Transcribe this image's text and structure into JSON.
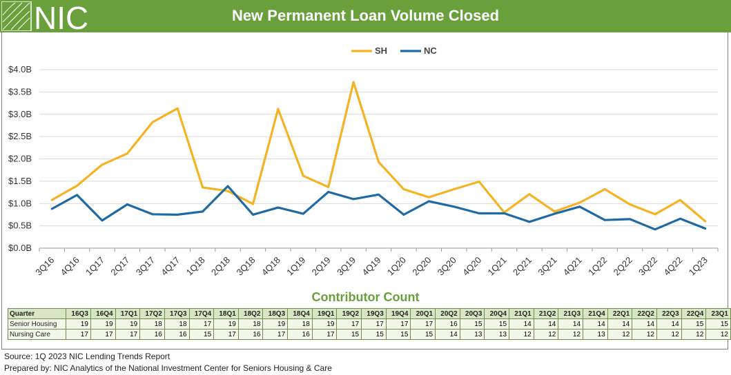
{
  "header": {
    "title": "New Permanent Loan Volume Closed",
    "logo_text": "NIC",
    "bg_color": "#6aa03c"
  },
  "chart_data": {
    "type": "line",
    "x": [
      "3Q16",
      "4Q16",
      "1Q17",
      "2Q17",
      "3Q17",
      "4Q17",
      "1Q18",
      "2Q18",
      "3Q18",
      "4Q18",
      "1Q19",
      "2Q19",
      "3Q19",
      "4Q19",
      "1Q20",
      "2Q20",
      "3Q20",
      "4Q20",
      "1Q21",
      "2Q21",
      "3Q21",
      "4Q21",
      "1Q22",
      "2Q22",
      "3Q22",
      "4Q22",
      "1Q23"
    ],
    "series": [
      {
        "name": "SH",
        "color": "#f5b324",
        "values": [
          1.08,
          1.4,
          1.87,
          2.12,
          2.82,
          3.13,
          1.36,
          1.28,
          0.99,
          3.12,
          1.62,
          1.37,
          3.72,
          1.93,
          1.32,
          1.14,
          1.32,
          1.49,
          0.8,
          1.21,
          0.82,
          1.02,
          1.32,
          0.98,
          0.76,
          1.08,
          0.6
        ]
      },
      {
        "name": "NC",
        "color": "#1f6aa5",
        "values": [
          0.88,
          1.19,
          0.62,
          0.98,
          0.76,
          0.75,
          0.82,
          1.39,
          0.75,
          0.91,
          0.77,
          1.26,
          1.1,
          1.2,
          0.75,
          1.05,
          0.93,
          0.78,
          0.78,
          0.59,
          0.77,
          0.93,
          0.63,
          0.65,
          0.42,
          0.66,
          0.44
        ]
      }
    ],
    "yticks": [
      "$0.0B",
      "$0.5B",
      "$1.0B",
      "$1.5B",
      "$2.0B",
      "$2.5B",
      "$3.0B",
      "$3.5B",
      "$4.0B"
    ],
    "ylim": [
      0,
      4.0
    ],
    "grid": true,
    "legend_position": "top-center"
  },
  "contributor": {
    "title": "Contributor Count",
    "header_label": "Quarter",
    "quarters": [
      "16Q3",
      "16Q4",
      "17Q1",
      "17Q2",
      "17Q3",
      "17Q4",
      "18Q1",
      "18Q2",
      "18Q3",
      "18Q4",
      "19Q1",
      "19Q2",
      "19Q3",
      "19Q4",
      "20Q1",
      "20Q2",
      "20Q3",
      "20Q4",
      "21Q1",
      "21Q2",
      "21Q3",
      "21Q4",
      "22Q1",
      "22Q2",
      "22Q3",
      "22Q4",
      "23Q1"
    ],
    "rows": [
      {
        "label": "Senior Housing",
        "values": [
          19,
          19,
          19,
          18,
          18,
          17,
          19,
          18,
          19,
          18,
          19,
          17,
          17,
          17,
          17,
          16,
          15,
          15,
          14,
          14,
          14,
          14,
          14,
          14,
          14,
          15,
          15
        ]
      },
      {
        "label": "Nursing Care",
        "values": [
          17,
          17,
          17,
          16,
          16,
          15,
          17,
          16,
          17,
          16,
          17,
          15,
          15,
          15,
          15,
          14,
          13,
          13,
          12,
          12,
          12,
          13,
          12,
          12,
          12,
          12,
          12
        ]
      }
    ]
  },
  "footer": {
    "source": "Source: 1Q 2023 NIC Lending Trends Report",
    "prepared": "Prepared by: NIC Analytics of the National Investment Center for Seniors Housing & Care"
  }
}
